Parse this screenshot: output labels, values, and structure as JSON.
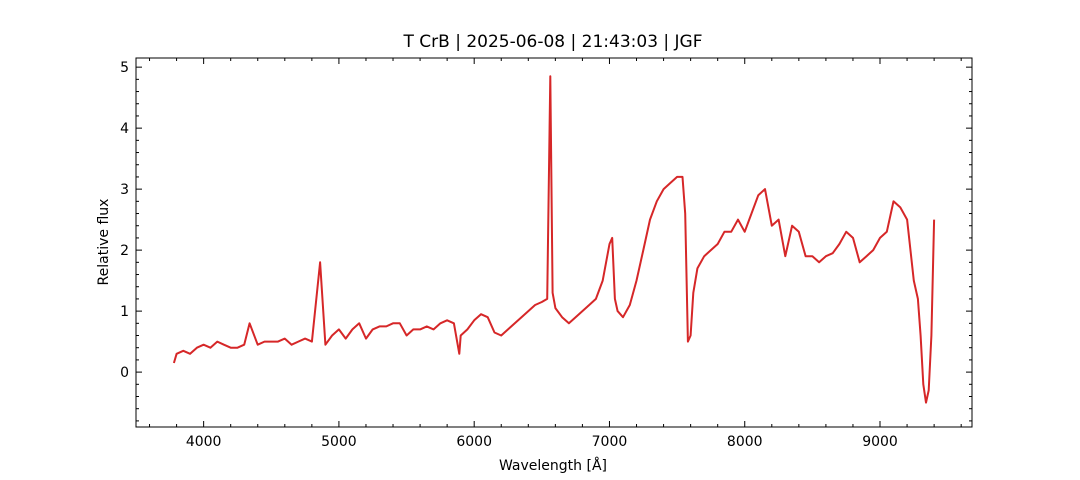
{
  "chart_data": {
    "type": "line",
    "title": "T CrB | 2025-06-08 | 21:43:03 | JGF",
    "xlabel": "Wavelength [Å]",
    "ylabel": "Relative flux",
    "xlim": [
      3500,
      9680
    ],
    "ylim": [
      -0.9,
      5.15
    ],
    "xticks": [
      4000,
      5000,
      6000,
      7000,
      8000,
      9000
    ],
    "xtick_labels": [
      "4000",
      "5000",
      "6000",
      "7000",
      "8000",
      "9000"
    ],
    "yticks": [
      0,
      1,
      2,
      3,
      4,
      5
    ],
    "ytick_labels": [
      "0",
      "1",
      "2",
      "3",
      "4",
      "5"
    ],
    "grid": false,
    "legend": "none",
    "series": [
      {
        "color": "#d62728",
        "x": [
          3780,
          3800,
          3850,
          3900,
          3950,
          4000,
          4050,
          4101,
          4150,
          4200,
          4250,
          4300,
          4340,
          4400,
          4450,
          4500,
          4550,
          4600,
          4650,
          4700,
          4750,
          4800,
          4861,
          4900,
          4950,
          5000,
          5050,
          5100,
          5150,
          5200,
          5250,
          5300,
          5350,
          5400,
          5450,
          5500,
          5550,
          5600,
          5650,
          5700,
          5750,
          5800,
          5850,
          5890,
          5900,
          5950,
          6000,
          6050,
          6100,
          6150,
          6200,
          6250,
          6300,
          6350,
          6400,
          6450,
          6500,
          6540,
          6563,
          6580,
          6600,
          6650,
          6700,
          6750,
          6800,
          6850,
          6900,
          6950,
          7000,
          7020,
          7040,
          7060,
          7100,
          7150,
          7200,
          7250,
          7300,
          7350,
          7400,
          7450,
          7500,
          7540,
          7560,
          7580,
          7600,
          7620,
          7650,
          7700,
          7750,
          7800,
          7850,
          7900,
          7950,
          8000,
          8050,
          8100,
          8150,
          8200,
          8250,
          8300,
          8350,
          8400,
          8450,
          8500,
          8550,
          8600,
          8650,
          8700,
          8750,
          8800,
          8850,
          8900,
          8950,
          9000,
          9050,
          9100,
          9150,
          9200,
          9250,
          9280,
          9300,
          9320,
          9340,
          9360,
          9380,
          9400
        ],
        "y": [
          0.15,
          0.3,
          0.35,
          0.3,
          0.4,
          0.45,
          0.4,
          0.5,
          0.45,
          0.4,
          0.4,
          0.45,
          0.8,
          0.45,
          0.5,
          0.5,
          0.5,
          0.55,
          0.45,
          0.5,
          0.55,
          0.5,
          1.8,
          0.45,
          0.6,
          0.7,
          0.55,
          0.7,
          0.8,
          0.55,
          0.7,
          0.75,
          0.75,
          0.8,
          0.8,
          0.6,
          0.7,
          0.7,
          0.75,
          0.7,
          0.8,
          0.85,
          0.8,
          0.3,
          0.6,
          0.7,
          0.85,
          0.95,
          0.9,
          0.65,
          0.6,
          0.7,
          0.8,
          0.9,
          1.0,
          1.1,
          1.15,
          1.2,
          4.85,
          1.3,
          1.05,
          0.9,
          0.8,
          0.9,
          1.0,
          1.1,
          1.2,
          1.5,
          2.1,
          2.2,
          1.2,
          1.0,
          0.9,
          1.1,
          1.5,
          2.0,
          2.5,
          2.8,
          3.0,
          3.1,
          3.2,
          3.2,
          2.6,
          0.5,
          0.6,
          1.3,
          1.7,
          1.9,
          2.0,
          2.1,
          2.3,
          2.3,
          2.5,
          2.3,
          2.6,
          2.9,
          3.0,
          2.4,
          2.5,
          1.9,
          2.4,
          2.3,
          1.9,
          1.9,
          1.8,
          1.9,
          1.95,
          2.1,
          2.3,
          2.2,
          1.8,
          1.9,
          2.0,
          2.2,
          2.3,
          2.8,
          2.7,
          2.5,
          1.5,
          1.2,
          0.6,
          -0.2,
          -0.5,
          -0.3,
          0.6,
          2.5
        ]
      }
    ]
  }
}
